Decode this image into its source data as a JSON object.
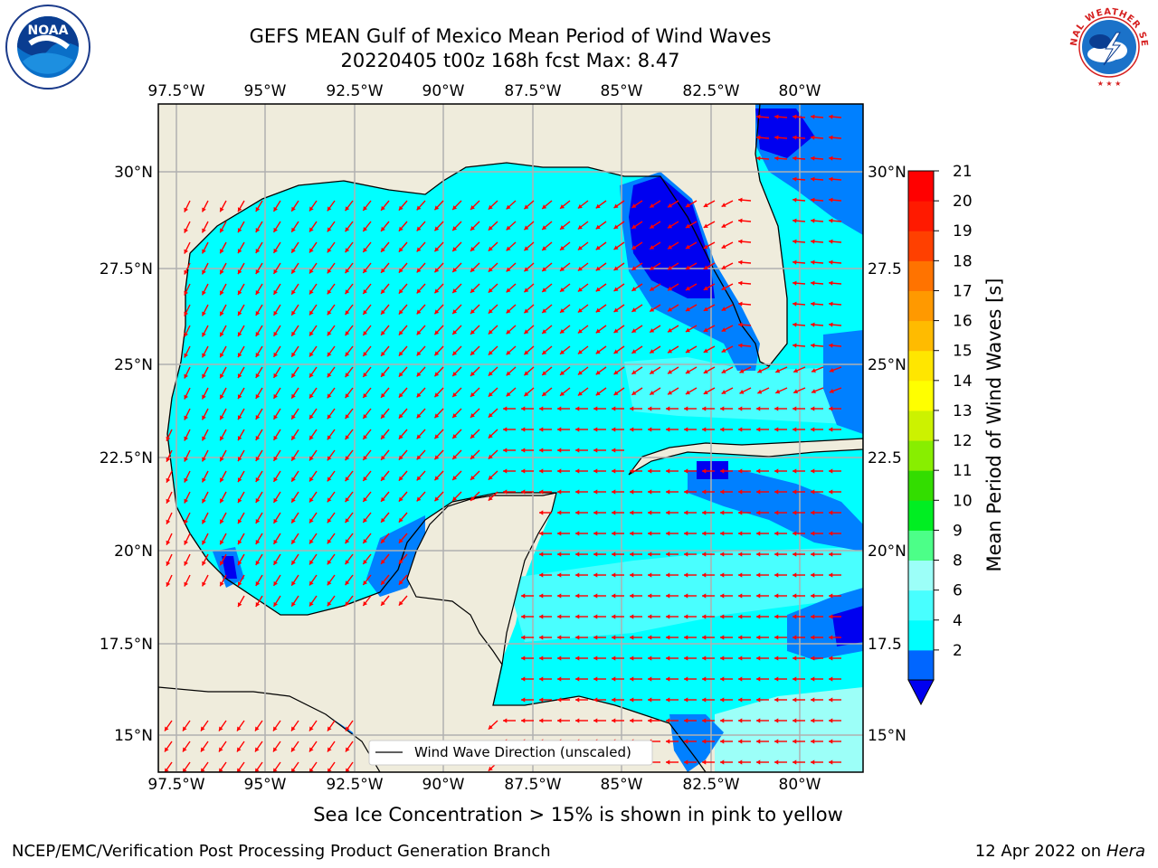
{
  "header": {
    "title": "GEFS MEAN Gulf of Mexico Mean Period of Wind Waves",
    "subtitle": "20220405 t00z 168h fcst   Max: 8.47"
  },
  "map": {
    "lon_labels": [
      "97.5°W",
      "95°W",
      "92.5°W",
      "90°W",
      "87.5°W",
      "85°W",
      "82.5°W",
      "80°W"
    ],
    "lat_labels_left": [
      "30°N",
      "27.5°N",
      "25°N",
      "22.5°N",
      "20°N",
      "17.5°N",
      "15°N"
    ],
    "lat_labels_right": [
      "30°N",
      "27.5",
      "25°N",
      "22.5",
      "20°N",
      "17.5",
      "15°N"
    ],
    "legend_label": "Wind Wave Direction (unscaled)",
    "colors": {
      "land": "#efecdc",
      "ocean_cyan": "#00ffff",
      "ocean_light": "#49ffff",
      "ocean_blue": "#0080ff",
      "ocean_dark": "#0000f0",
      "arrow": "#ff0000"
    }
  },
  "colorbar": {
    "label": "Mean Period of Wind Waves [s]",
    "ticks": [
      "21",
      "20",
      "19",
      "18",
      "17",
      "16",
      "15",
      "14",
      "13",
      "12",
      "11",
      "10",
      "9",
      "8",
      "6",
      "4",
      "2"
    ],
    "colors": [
      "#0066ff",
      "#00ffff",
      "#48ffff",
      "#9cfff8",
      "#4cff88",
      "#00ee22",
      "#33dd00",
      "#88ee00",
      "#ccf200",
      "#ffff00",
      "#ffe600",
      "#ffbb00",
      "#ff9900",
      "#ff7300",
      "#ff4000",
      "#ff1a00",
      "#ff0000"
    ]
  },
  "footer": {
    "note": "Sea Ice Concentration > 15% is shown in pink to yellow",
    "left": "NCEP/EMC/Verification Post Processing Product Generation Branch",
    "right_date": "12 Apr 2022 on",
    "right_machine": "Hera"
  },
  "logos": {
    "noaa_text": "NOAA",
    "nws_text": "NATIONAL WEATHER SERVICE"
  }
}
